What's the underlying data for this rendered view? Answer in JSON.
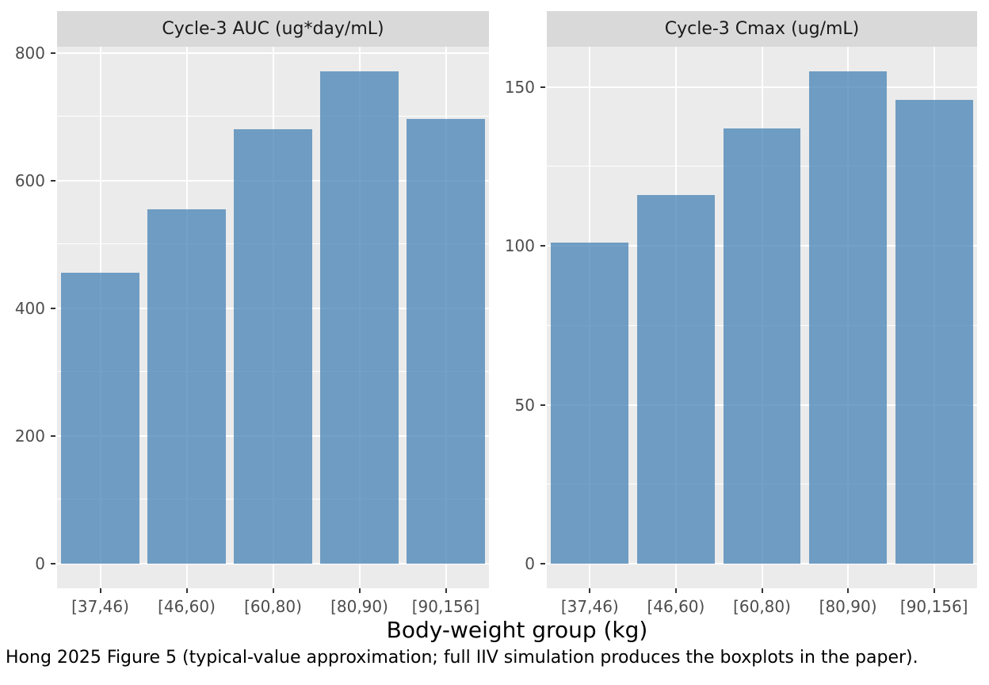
{
  "figure": {
    "axis_title": "Body-weight group (kg)",
    "caption": "Hong 2025 Figure 5 (typical-value approximation; full IIV simulation produces the boxplots in the paper).",
    "colors": {
      "bar_fill": "#4682B4",
      "bar_fill_alpha": 0.75,
      "panel_bg": "#EBEBEB",
      "strip_bg": "#D9D9D9",
      "grid": "#FFFFFF",
      "tick_text": "#4D4D4D",
      "strip_text": "#1A1A1A",
      "tick_mark": "#333333"
    }
  },
  "chart_data": [
    {
      "type": "bar",
      "title": "Cycle-3 AUC (ug*day/mL)",
      "categories": [
        "[37,46)",
        "[46,60)",
        "[60,80)",
        "[80,90)",
        "[90,156]"
      ],
      "values": [
        456,
        555,
        681,
        771,
        697
      ],
      "xlabel": "Body-weight group (kg)",
      "ylabel": "",
      "ylim": [
        -38.55,
        809.55
      ],
      "yticks_major": [
        0,
        200,
        400,
        600,
        800
      ],
      "yticks_minor": [
        100,
        300,
        500,
        700
      ],
      "grid": true,
      "legend": false
    },
    {
      "type": "bar",
      "title": "Cycle-3 Cmax (ug/mL)",
      "categories": [
        "[37,46)",
        "[46,60)",
        "[60,80)",
        "[80,90)",
        "[90,156]"
      ],
      "values": [
        101,
        116,
        137,
        155,
        146
      ],
      "xlabel": "Body-weight group (kg)",
      "ylabel": "",
      "ylim": [
        -7.75,
        162.75
      ],
      "yticks_major": [
        0,
        50,
        100,
        150
      ],
      "yticks_minor": [
        25,
        75,
        125
      ],
      "grid": true,
      "legend": false
    }
  ]
}
